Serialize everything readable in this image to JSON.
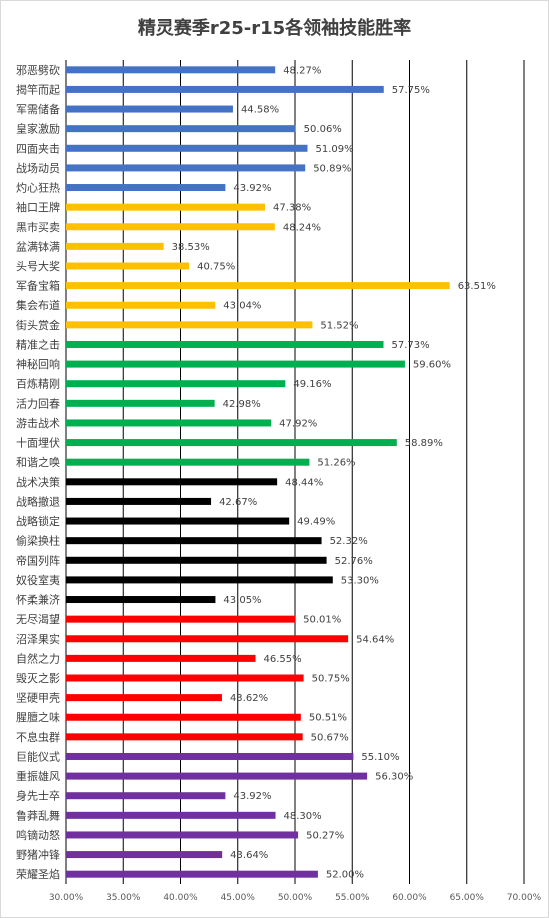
{
  "chart_data": {
    "type": "bar",
    "orientation": "horizontal",
    "title": "精灵赛季r25-r15各领袖技能胜率",
    "xlim": [
      0.3,
      0.7
    ],
    "x_ticks": [
      0.3,
      0.35,
      0.4,
      0.45,
      0.5,
      0.55,
      0.6,
      0.65,
      0.7
    ],
    "x_tick_labels": [
      "30.00%",
      "35.00%",
      "40.00%",
      "45.00%",
      "50.00%",
      "55.00%",
      "60.00%",
      "65.00%",
      "70.00%"
    ],
    "grid": true,
    "legend": "none",
    "categories": [
      "邪恶劈砍",
      "揭竿而起",
      "军需储备",
      "皇家激励",
      "四面夹击",
      "战场动员",
      "灼心狂热",
      "袖口王牌",
      "黑市买卖",
      "盆满钵满",
      "头号大奖",
      "军备宝箱",
      "集会布道",
      "街头赏金",
      "精准之击",
      "神秘回响",
      "百炼精刚",
      "活力回春",
      "游击战术",
      "十面埋伏",
      "和谐之唤",
      "战术决策",
      "战略撤退",
      "战略锁定",
      "偷梁换柱",
      "帝国列阵",
      "奴役室夷",
      "怀柔兼济",
      "无尽渴望",
      "沼泽果实",
      "自然之力",
      "毁灭之影",
      "坚硬甲壳",
      "腥膻之味",
      "不息虫群",
      "巨能仪式",
      "重振雄风",
      "身先士卒",
      "鲁莽乱舞",
      "鸣镝动怒",
      "野猪冲锋",
      "荣耀圣焰"
    ],
    "values": [
      0.4827,
      0.5775,
      0.4458,
      0.5006,
      0.5109,
      0.5089,
      0.4392,
      0.4738,
      0.4824,
      0.3853,
      0.4075,
      0.6351,
      0.4304,
      0.5152,
      0.5773,
      0.596,
      0.4916,
      0.4298,
      0.4792,
      0.5889,
      0.5126,
      0.4844,
      0.4267,
      0.4949,
      0.5232,
      0.5276,
      0.533,
      0.4305,
      0.5001,
      0.5464,
      0.4655,
      0.5075,
      0.4362,
      0.5051,
      0.5067,
      0.551,
      0.563,
      0.4392,
      0.483,
      0.5027,
      0.4364,
      0.52
    ],
    "data_labels": [
      "48.27%",
      "57.75%",
      "44.58%",
      "50.06%",
      "51.09%",
      "50.89%",
      "43.92%",
      "47.38%",
      "48.24%",
      "38.53%",
      "40.75%",
      "63.51%",
      "43.04%",
      "51.52%",
      "57.73%",
      "59.60%",
      "49.16%",
      "42.98%",
      "47.92%",
      "58.89%",
      "51.26%",
      "48.44%",
      "42.67%",
      "49.49%",
      "52.32%",
      "52.76%",
      "53.30%",
      "43.05%",
      "50.01%",
      "54.64%",
      "46.55%",
      "50.75%",
      "43.62%",
      "50.51%",
      "50.67%",
      "55.10%",
      "56.30%",
      "43.92%",
      "48.30%",
      "50.27%",
      "43.64%",
      "52.00%"
    ],
    "colors": [
      "#4472c4",
      "#4472c4",
      "#4472c4",
      "#4472c4",
      "#4472c4",
      "#4472c4",
      "#4472c4",
      "#ffc000",
      "#ffc000",
      "#ffc000",
      "#ffc000",
      "#ffc000",
      "#ffc000",
      "#ffc000",
      "#00b050",
      "#00b050",
      "#00b050",
      "#00b050",
      "#00b050",
      "#00b050",
      "#00b050",
      "#000000",
      "#000000",
      "#000000",
      "#000000",
      "#000000",
      "#000000",
      "#000000",
      "#ff0000",
      "#ff0000",
      "#ff0000",
      "#ff0000",
      "#ff0000",
      "#ff0000",
      "#ff0000",
      "#7030a0",
      "#7030a0",
      "#7030a0",
      "#7030a0",
      "#7030a0",
      "#7030a0",
      "#7030a0"
    ]
  }
}
